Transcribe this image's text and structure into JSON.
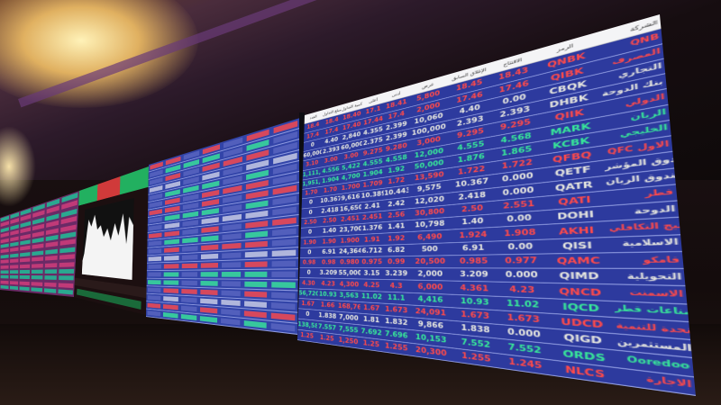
{
  "scene": "stock exchange display board",
  "colors": {
    "board_bg": "#2d3a9e",
    "up": "#38e89a",
    "down": "#ff4a4a",
    "unchanged": "#e8e8e0"
  },
  "main_board": {
    "headers": [
      "العدد",
      "مبلغ التداول",
      "كمية التداول",
      "أعلى",
      "أدنى",
      "عرض",
      "الإغلاق السابق",
      "الافتتاح",
      "الرمز",
      "الشركة"
    ],
    "rows": [
      {
        "name": "QNB",
        "code": "QNBK",
        "extra": [
          "18.4",
          "18.4",
          "18.40",
          "17.1",
          "18.41"
        ],
        "value": "5,800",
        "prev": "18.45",
        "open": "18.43",
        "status": "red"
      },
      {
        "name": "المصرف",
        "code": "QIBK",
        "extra": [
          "17.4",
          "17.4",
          "17.40",
          "17.44",
          "17.4"
        ],
        "value": "2,000",
        "prev": "17.46",
        "open": "17.46",
        "status": "red"
      },
      {
        "name": "التجاري",
        "code": "CBQK",
        "extra": [
          "0",
          "4.40",
          "2,840",
          "4.355",
          "2.399"
        ],
        "value": "10,060",
        "prev": "4.40",
        "open": "0.00",
        "status": "white"
      },
      {
        "name": "بنك الدوحة",
        "code": "DHBK",
        "extra": [
          "60,000",
          "2.393",
          "60,000",
          "2.375",
          "2.399"
        ],
        "value": "100,000",
        "prev": "2.393",
        "open": "2.393",
        "status": "white"
      },
      {
        "name": "الدولي",
        "code": "QIIK",
        "extra": [
          "3.10",
          "3.00",
          "3.00",
          "9.275",
          "9.280"
        ],
        "value": "3,000",
        "prev": "9.295",
        "open": "9.295",
        "status": "red"
      },
      {
        "name": "الريان",
        "code": "MARK",
        "extra": [
          "1,111,398",
          "4.556",
          "5,422",
          "4.555",
          "4.558"
        ],
        "value": "12,000",
        "prev": "4.555",
        "open": "4.568",
        "status": "green"
      },
      {
        "name": "الخليجي",
        "code": "KCBK",
        "extra": [
          "1,951,425",
          "1.904",
          "4,700",
          "1.904",
          "1.92"
        ],
        "value": "50,000",
        "prev": "1.876",
        "open": "1.865",
        "status": "green"
      },
      {
        "name": "QFC الأول",
        "code": "QFBQ",
        "extra": [
          "1.70",
          "1.70",
          "1.700",
          "1.709",
          "1.72"
        ],
        "value": "13,590",
        "prev": "1.722",
        "open": "1.722",
        "status": "red"
      },
      {
        "name": "صندوق المؤشر",
        "code": "QETF",
        "extra": [
          "0",
          "10.367",
          "9,616",
          "10.389",
          "10.443"
        ],
        "value": "9,575",
        "prev": "10.367",
        "open": "0.000",
        "status": "white"
      },
      {
        "name": "صندوق الريان",
        "code": "QATR",
        "extra": [
          "0",
          "2.418",
          "16,650",
          "2.41",
          "2.42"
        ],
        "value": "12,020",
        "prev": "2.418",
        "open": "0.000",
        "status": "white"
      },
      {
        "name": "قطر",
        "code": "QATI",
        "extra": [
          "2.50",
          "2.50",
          "2.451",
          "2.451",
          "2.56"
        ],
        "value": "30,800",
        "prev": "2.50",
        "open": "2.551",
        "status": "red"
      },
      {
        "name": "الدوحة",
        "code": "DOHI",
        "extra": [
          "0",
          "1.40",
          "23,700",
          "1.376",
          "1.41"
        ],
        "value": "10,798",
        "prev": "1.40",
        "open": "0.00",
        "status": "white"
      },
      {
        "name": "الخليج التكافلي",
        "code": "AKHI",
        "extra": [
          "1.90",
          "1.90",
          "1.900",
          "1.91",
          "1.92"
        ],
        "value": "6,490",
        "prev": "1.924",
        "open": "1.908",
        "status": "red"
      },
      {
        "name": "الاسلامية",
        "code": "QISI",
        "extra": [
          "0",
          "6.91",
          "24,364",
          "6.712",
          "6.82"
        ],
        "value": "500",
        "prev": "6.91",
        "open": "0.00",
        "status": "white"
      },
      {
        "name": "قامكو",
        "code": "QAMC",
        "extra": [
          "0.98",
          "0.98",
          "0.980",
          "0.975",
          "0.99"
        ],
        "value": "20,500",
        "prev": "0.985",
        "open": "0.977",
        "status": "red"
      },
      {
        "name": "التحويلية",
        "code": "QIMD",
        "extra": [
          "0",
          "3.209",
          "55,000",
          "3.15",
          "3.239"
        ],
        "value": "2,000",
        "prev": "3.209",
        "open": "0.000",
        "status": "white"
      },
      {
        "name": "الاسمنت",
        "code": "QNCD",
        "extra": [
          "4.30",
          "4.23",
          "4,300",
          "4.25",
          "4.3"
        ],
        "value": "6,000",
        "prev": "4.361",
        "open": "4.23",
        "status": "red"
      },
      {
        "name": "صناعات قطر",
        "code": "IQCD",
        "extra": [
          "56,720",
          "10.93",
          "3,563",
          "11.02",
          "11.1"
        ],
        "value": "4,416",
        "prev": "10.93",
        "open": "11.02",
        "status": "green"
      },
      {
        "name": "المتحدة للتنمية",
        "code": "UDCD",
        "extra": [
          "1.67",
          "1.66",
          "168,761",
          "1.67",
          "1.673"
        ],
        "value": "24,091",
        "prev": "1.673",
        "open": "1.673",
        "status": "red"
      },
      {
        "name": "المستثمرين",
        "code": "QIGD",
        "extra": [
          "0",
          "1.838",
          "7,000",
          "1.81",
          "1.832"
        ],
        "value": "9,866",
        "prev": "1.838",
        "open": "0.000",
        "status": "white"
      },
      {
        "name": "Ooredoo",
        "code": "ORDS",
        "extra": [
          "138,586",
          "7.557",
          "7,555",
          "7.692",
          "7.696"
        ],
        "value": "10,153",
        "prev": "7.552",
        "open": "7.552",
        "status": "green"
      },
      {
        "name": "الاجارة",
        "code": "NLCS",
        "extra": [
          "1.25",
          "1.25",
          "1,250",
          "1.25",
          "1.255"
        ],
        "value": "20,300",
        "prev": "1.255",
        "open": "1.245",
        "status": "red"
      }
    ]
  },
  "middle_board_pattern": [
    "r",
    "g",
    "r",
    "w",
    "g",
    "r",
    "r",
    "g",
    "w",
    "r",
    "g",
    "r",
    "w",
    "r",
    "g",
    "g",
    "r",
    "w",
    "r",
    "g"
  ],
  "left_board_pattern": [
    "g",
    "r",
    "g",
    "r",
    "r",
    "g",
    "r",
    "g",
    "r",
    "r",
    "g",
    "g",
    "r",
    "g"
  ]
}
